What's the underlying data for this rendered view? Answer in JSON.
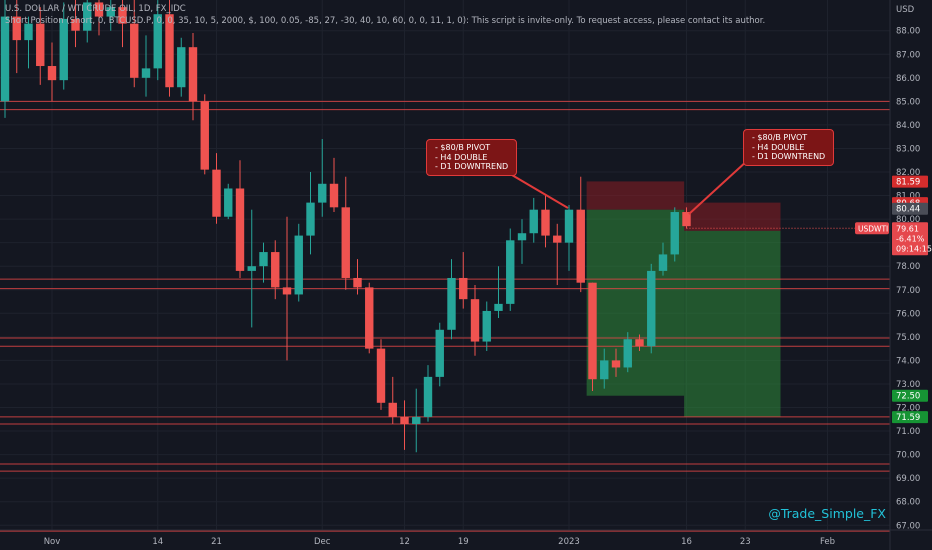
{
  "header": {
    "title": "U.S. DOLLAR / WTI CRUDE OIL, 1D, FX_IDC",
    "indicator": "Short Position (Short, 0, BTCUSD.P, 0, 0, 35, 10, 5, 2000, $, 100, 0.05, -85, 27, -30, 40, 10, 60, 0, 0, 11, 1, 0): This script is invite-only. To request access, please contact its author."
  },
  "currency": "USD",
  "watermark": "@Trade_Simple_FX",
  "annotations": [
    {
      "lines": [
        "- $80/B PIVOT",
        "- H4 DOUBLE",
        "- D1 DOWNTREND"
      ]
    },
    {
      "lines": [
        "- $80/B PIVOT",
        "- H4 DOUBLE",
        "- D1 DOWNTREND"
      ]
    }
  ],
  "colors": {
    "bull": "#26a69a",
    "bear": "#ef5350",
    "level_line": "#e04545",
    "profit_zone": "#2e8b3a",
    "loss_zone": "#8b1e24",
    "axis_text": "#b2b5be"
  },
  "chart_data": {
    "type": "candlestick",
    "y_axis": {
      "range": [
        66.5,
        89.7
      ],
      "ticks": [
        "67.00",
        "68.00",
        "69.00",
        "70.00",
        "71.00",
        "72.00",
        "73.00",
        "74.00",
        "75.00",
        "76.00",
        "77.00",
        "78.00",
        "79.00",
        "80.00",
        "81.00",
        "82.00",
        "83.00",
        "84.00",
        "85.00",
        "86.00",
        "87.00",
        "88.00"
      ]
    },
    "x_axis": {
      "labels": [
        {
          "label": "Nov",
          "index": 4
        },
        {
          "label": "14",
          "index": 13
        },
        {
          "label": "21",
          "index": 18
        },
        {
          "label": "Dec",
          "index": 27
        },
        {
          "label": "12",
          "index": 34
        },
        {
          "label": "19",
          "index": 39
        },
        {
          "label": "2023",
          "index": 48
        },
        {
          "label": "16",
          "index": 58
        },
        {
          "label": "23",
          "index": 63
        },
        {
          "label": "Feb",
          "index": 70
        }
      ]
    },
    "candles": [
      {
        "o": 85.0,
        "h": 89.4,
        "l": 84.3,
        "c": 88.6
      },
      {
        "o": 88.6,
        "h": 89.5,
        "l": 86.2,
        "c": 87.6
      },
      {
        "o": 87.6,
        "h": 88.6,
        "l": 86.4,
        "c": 88.3
      },
      {
        "o": 88.3,
        "h": 89.0,
        "l": 85.7,
        "c": 86.5
      },
      {
        "o": 86.5,
        "h": 87.5,
        "l": 85.0,
        "c": 85.9
      },
      {
        "o": 85.9,
        "h": 89.2,
        "l": 85.5,
        "c": 88.5
      },
      {
        "o": 88.5,
        "h": 89.4,
        "l": 87.3,
        "c": 88.0
      },
      {
        "o": 88.0,
        "h": 89.7,
        "l": 87.5,
        "c": 89.2
      },
      {
        "o": 89.2,
        "h": 89.7,
        "l": 87.8,
        "c": 88.6
      },
      {
        "o": 88.6,
        "h": 89.7,
        "l": 88.0,
        "c": 89.0
      },
      {
        "o": 89.0,
        "h": 89.7,
        "l": 87.3,
        "c": 88.3
      },
      {
        "o": 88.3,
        "h": 89.6,
        "l": 85.6,
        "c": 86.0
      },
      {
        "o": 86.0,
        "h": 87.8,
        "l": 85.2,
        "c": 86.4
      },
      {
        "o": 86.4,
        "h": 89.3,
        "l": 85.9,
        "c": 88.7
      },
      {
        "o": 88.7,
        "h": 89.5,
        "l": 85.2,
        "c": 85.6
      },
      {
        "o": 85.6,
        "h": 87.7,
        "l": 85.2,
        "c": 87.3
      },
      {
        "o": 87.3,
        "h": 87.9,
        "l": 84.2,
        "c": 85.0
      },
      {
        "o": 85.0,
        "h": 85.3,
        "l": 81.9,
        "c": 82.1
      },
      {
        "o": 82.1,
        "h": 82.8,
        "l": 79.8,
        "c": 80.1
      },
      {
        "o": 80.1,
        "h": 81.5,
        "l": 80.0,
        "c": 81.3
      },
      {
        "o": 81.3,
        "h": 82.5,
        "l": 77.5,
        "c": 77.8
      },
      {
        "o": 77.8,
        "h": 80.4,
        "l": 75.4,
        "c": 78.0
      },
      {
        "o": 78.0,
        "h": 79.0,
        "l": 77.3,
        "c": 78.6
      },
      {
        "o": 78.6,
        "h": 79.1,
        "l": 76.6,
        "c": 77.1
      },
      {
        "o": 77.1,
        "h": 80.1,
        "l": 74.0,
        "c": 76.8
      },
      {
        "o": 76.8,
        "h": 79.8,
        "l": 76.5,
        "c": 79.3
      },
      {
        "o": 79.3,
        "h": 82.0,
        "l": 78.5,
        "c": 80.7
      },
      {
        "o": 80.7,
        "h": 83.4,
        "l": 80.1,
        "c": 81.5
      },
      {
        "o": 81.5,
        "h": 82.6,
        "l": 80.3,
        "c": 80.5
      },
      {
        "o": 80.5,
        "h": 81.8,
        "l": 77.0,
        "c": 77.5
      },
      {
        "o": 77.5,
        "h": 78.3,
        "l": 76.8,
        "c": 77.1
      },
      {
        "o": 77.1,
        "h": 77.3,
        "l": 74.3,
        "c": 74.5
      },
      {
        "o": 74.5,
        "h": 74.9,
        "l": 71.9,
        "c": 72.2
      },
      {
        "o": 72.2,
        "h": 73.3,
        "l": 71.3,
        "c": 71.6
      },
      {
        "o": 71.6,
        "h": 72.3,
        "l": 70.2,
        "c": 71.3
      },
      {
        "o": 71.3,
        "h": 72.8,
        "l": 70.1,
        "c": 71.6
      },
      {
        "o": 71.6,
        "h": 73.8,
        "l": 71.4,
        "c": 73.3
      },
      {
        "o": 73.3,
        "h": 75.6,
        "l": 72.9,
        "c": 75.3
      },
      {
        "o": 75.3,
        "h": 78.3,
        "l": 74.9,
        "c": 77.5
      },
      {
        "o": 77.5,
        "h": 78.6,
        "l": 76.2,
        "c": 76.6
      },
      {
        "o": 76.6,
        "h": 77.2,
        "l": 74.2,
        "c": 74.8
      },
      {
        "o": 74.8,
        "h": 76.5,
        "l": 74.4,
        "c": 76.1
      },
      {
        "o": 76.1,
        "h": 78.0,
        "l": 75.8,
        "c": 76.4
      },
      {
        "o": 76.4,
        "h": 79.6,
        "l": 76.1,
        "c": 79.1
      },
      {
        "o": 79.1,
        "h": 80.0,
        "l": 78.1,
        "c": 79.4
      },
      {
        "o": 79.4,
        "h": 80.9,
        "l": 79.0,
        "c": 80.4
      },
      {
        "o": 80.4,
        "h": 81.0,
        "l": 78.8,
        "c": 79.3
      },
      {
        "o": 79.3,
        "h": 79.8,
        "l": 77.2,
        "c": 79.0
      },
      {
        "o": 79.0,
        "h": 80.6,
        "l": 77.8,
        "c": 80.4
      },
      {
        "o": 80.4,
        "h": 81.8,
        "l": 76.9,
        "c": 77.3
      },
      {
        "o": 77.3,
        "h": 77.3,
        "l": 72.7,
        "c": 73.2
      },
      {
        "o": 73.2,
        "h": 74.5,
        "l": 72.8,
        "c": 74.0
      },
      {
        "o": 74.0,
        "h": 74.5,
        "l": 73.3,
        "c": 73.7
      },
      {
        "o": 73.7,
        "h": 75.2,
        "l": 73.5,
        "c": 74.9
      },
      {
        "o": 74.9,
        "h": 75.1,
        "l": 74.4,
        "c": 74.6
      },
      {
        "o": 74.6,
        "h": 78.1,
        "l": 74.3,
        "c": 77.8
      },
      {
        "o": 77.8,
        "h": 79.0,
        "l": 77.6,
        "c": 78.5
      },
      {
        "o": 78.5,
        "h": 80.5,
        "l": 78.2,
        "c": 80.3
      },
      {
        "o": 80.3,
        "h": 80.5,
        "l": 79.6,
        "c": 79.7
      }
    ],
    "horizontal_levels": [
      84.65,
      85.0,
      77.45,
      77.05,
      74.95,
      74.6,
      71.6,
      71.3,
      69.6,
      69.3,
      66.75
    ],
    "zones": [
      {
        "kind": "loss",
        "x_from": 49.5,
        "x_to": 57.8,
        "y_from": 80.4,
        "y_to": 81.6
      },
      {
        "kind": "profit",
        "x_from": 49.5,
        "x_to": 57.8,
        "y_from": 72.5,
        "y_to": 80.4
      },
      {
        "kind": "loss",
        "x_from": 57.8,
        "x_to": 66.0,
        "y_from": 79.5,
        "y_to": 80.7
      },
      {
        "kind": "profit",
        "x_from": 57.8,
        "x_to": 66.0,
        "y_from": 71.6,
        "y_to": 79.5
      }
    ],
    "price_labels": [
      {
        "text": "81.59",
        "value": 81.59,
        "color": "#d42d2d"
      },
      {
        "text": "80.68",
        "value": 80.68,
        "color": "#d42d2d"
      },
      {
        "text": "80.44",
        "value": 80.44,
        "color": "#4a4d57"
      },
      {
        "text": "79.53",
        "value": 79.53,
        "color": "#4a4d57"
      },
      {
        "text": "72.50",
        "value": 72.5,
        "color": "#169434"
      },
      {
        "text": "71.59",
        "value": 71.59,
        "color": "#169434"
      }
    ],
    "current_price": {
      "symbol": "USDWTI",
      "price": "79.61",
      "change": "-6.41%",
      "countdown": "09:14:15",
      "value": 79.61
    }
  }
}
